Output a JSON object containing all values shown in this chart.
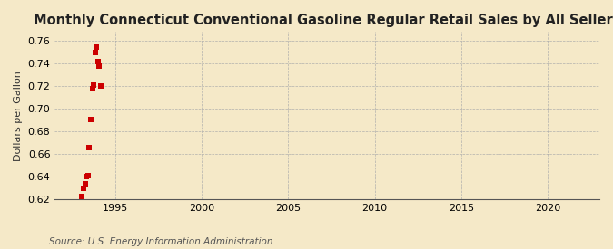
{
  "title": "Monthly Connecticut Conventional Gasoline Regular Retail Sales by All Sellers",
  "ylabel": "Dollars per Gallon",
  "source": "Source: U.S. Energy Information Administration",
  "background_color": "#f5e9c8",
  "plot_background_color": "#f5e9c8",
  "data_color": "#cc0000",
  "xlim": [
    1991.5,
    2023
  ],
  "ylim": [
    0.62,
    0.768
  ],
  "yticks": [
    0.62,
    0.64,
    0.66,
    0.68,
    0.7,
    0.72,
    0.74,
    0.76
  ],
  "xticks": [
    1995,
    2000,
    2005,
    2010,
    2015,
    2020
  ],
  "x_data": [
    1993.08,
    1993.17,
    1993.25,
    1993.33,
    1993.42,
    1993.5,
    1993.58,
    1993.67,
    1993.75,
    1993.83,
    1993.92,
    1994.0,
    1994.08,
    1994.17
  ],
  "y_data": [
    0.623,
    0.63,
    0.634,
    0.64,
    0.641,
    0.666,
    0.691,
    0.718,
    0.721,
    0.75,
    0.755,
    0.742,
    0.738,
    0.72
  ],
  "marker_size": 16,
  "title_fontsize": 10.5,
  "label_fontsize": 8,
  "tick_fontsize": 8,
  "source_fontsize": 7.5
}
